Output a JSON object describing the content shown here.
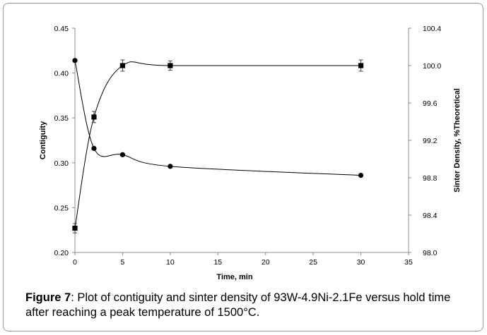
{
  "chart_data": {
    "type": "line",
    "xlabel": "Time, min",
    "ylabel_left": "Contiguity",
    "ylabel_right": "Sinter Density, %Theoretical",
    "xlim": [
      0,
      35
    ],
    "ylim_left": [
      0.2,
      0.45
    ],
    "ylim_right": [
      98.0,
      100.4
    ],
    "x_ticks": [
      "0",
      "5",
      "10",
      "15",
      "20",
      "25",
      "30",
      "35"
    ],
    "y_left_ticks": [
      "0.20",
      "0.25",
      "0.30",
      "0.35",
      "0.40",
      "0.45"
    ],
    "y_right_ticks": [
      "98.0",
      "98.4",
      "98.8",
      "99.2",
      "99.6",
      "100.0",
      "100.4"
    ],
    "grid": false,
    "legend": "none",
    "series": [
      {
        "marker": "circle",
        "axis": "left",
        "x": [
          0,
          2,
          5,
          10,
          30
        ],
        "y": [
          0.414,
          0.316,
          0.309,
          0.296,
          0.286
        ]
      },
      {
        "marker": "square",
        "axis": "right",
        "x": [
          0,
          2,
          5,
          10,
          30
        ],
        "y": [
          98.26,
          99.45,
          100.0,
          100.0,
          100.0
        ],
        "error": [
          0.05,
          0.06,
          0.06,
          0.05,
          0.06
        ]
      }
    ],
    "colors": {
      "line": "#000000",
      "axis": "#8c8c8c"
    }
  },
  "caption": {
    "label": "Figure 7",
    "text": ": Plot of contiguity and sinter density of 93W-4.9Ni-2.1Fe versus hold time after reaching a peak temperature of 1500°C."
  }
}
